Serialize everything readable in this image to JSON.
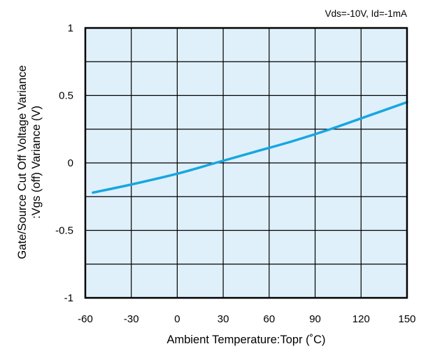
{
  "chart_data": {
    "type": "line",
    "annotation": "Vds=-10V, Id=-1mA",
    "xlabel": "Ambient Temperature:Topr (˚C)",
    "ylabel_line1": "Gate/Source Cut Off Voltage Variance",
    "ylabel_line2": ":Vgs (off) Variance (V)",
    "xlim": [
      -60,
      150
    ],
    "ylim": [
      -1,
      1
    ],
    "x_ticks": [
      -60,
      -30,
      0,
      30,
      60,
      90,
      120,
      150
    ],
    "x_tick_labels": [
      "-60",
      "-30",
      "0",
      "30",
      "60",
      "90",
      "120",
      "150"
    ],
    "y_ticks": [
      1,
      0.5,
      0,
      -0.5,
      -1
    ],
    "y_tick_labels": [
      "1",
      "0.5",
      "0",
      "-0.5",
      "-1"
    ],
    "minor_y_grid_step": 0.25,
    "grid": true,
    "colors": {
      "plot_background": "#dff0fb",
      "grid": "#000000",
      "series": "#17a6e0"
    },
    "series": [
      {
        "x": [
          -55,
          -30,
          0,
          25,
          50,
          75,
          100,
          125,
          150
        ],
        "y": [
          -0.22,
          -0.16,
          -0.08,
          0.0,
          0.08,
          0.16,
          0.25,
          0.35,
          0.45
        ]
      }
    ]
  }
}
